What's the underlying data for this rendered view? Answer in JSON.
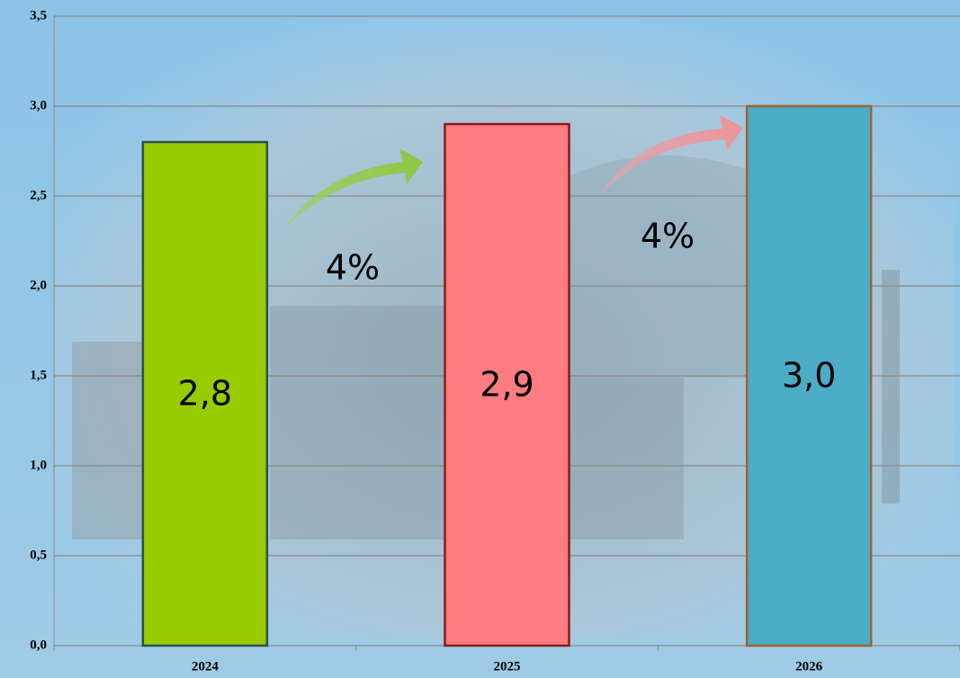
{
  "chart_data": {
    "type": "bar",
    "categories": [
      "2024",
      "2025",
      "2026"
    ],
    "values": [
      2.8,
      2.9,
      3.0
    ],
    "value_labels": [
      "2,8",
      "2,9",
      "3,0"
    ],
    "colors": [
      "#99cc00",
      "#ff7c80",
      "#4bacc6"
    ],
    "edge_colors": [
      "#2f4f4f",
      "#8b1a1a",
      "#a0622d"
    ],
    "ylim": [
      0,
      3.5
    ],
    "yticks": [
      {
        "value": 0,
        "label": "0,0"
      },
      {
        "value": 0.5,
        "label": "0,5"
      },
      {
        "value": 1,
        "label": "1,0"
      },
      {
        "value": 1.5,
        "label": "1,5"
      },
      {
        "value": 2,
        "label": "2,0"
      },
      {
        "value": 2.5,
        "label": "2,5"
      },
      {
        "value": 3,
        "label": "3,0"
      },
      {
        "value": 3.5,
        "label": "3,5"
      }
    ],
    "grid": true,
    "annotations": [
      "4%",
      "4%"
    ]
  }
}
